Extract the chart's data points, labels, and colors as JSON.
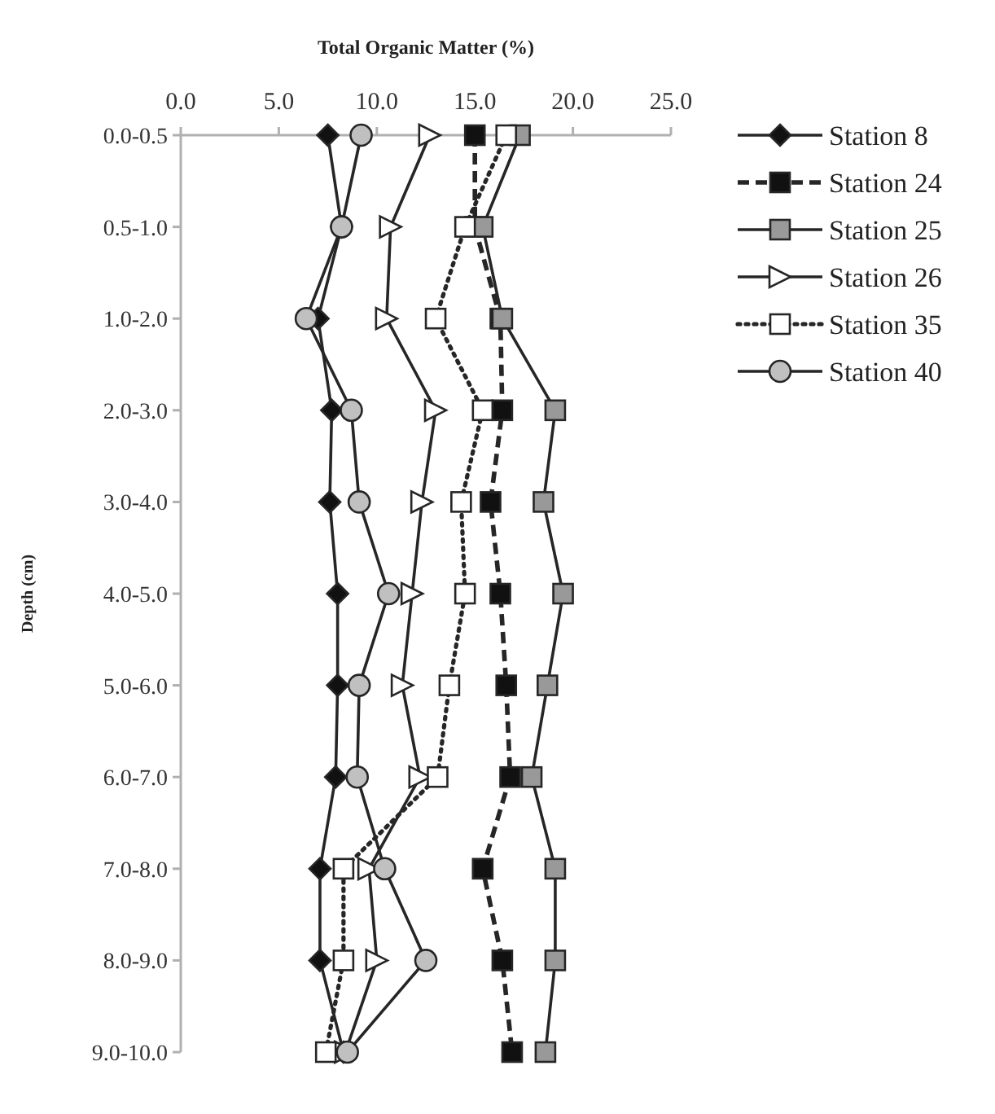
{
  "chart_data": {
    "type": "line",
    "orientation": "horizontal",
    "xlabel": "Total Organic Matter (%)",
    "ylabel": "Depth (cm)",
    "categories": [
      "0.0-0.5",
      "0.5-1.0",
      "1.0-2.0",
      "2.0-3.0",
      "3.0-4.0",
      "4.0-5.0",
      "5.0-6.0",
      "6.0-7.0",
      "7.0-8.0",
      "8.0-9.0",
      "9.0-10.0"
    ],
    "xlim": [
      0,
      25
    ],
    "xticks": [
      {
        "value": 0,
        "label": "0.0"
      },
      {
        "value": 5,
        "label": "5.0"
      },
      {
        "value": 10,
        "label": "10.0"
      },
      {
        "value": 15,
        "label": "15.0"
      },
      {
        "value": 20,
        "label": "20.0"
      },
      {
        "value": 25,
        "label": "25.0"
      }
    ],
    "grid": false,
    "legend": "right",
    "series": [
      {
        "name": "Station 8",
        "color": "#111111",
        "marker": "diamond",
        "line_style": "solid",
        "values": [
          7.5,
          8.2,
          7.0,
          7.7,
          7.6,
          8.0,
          8.0,
          7.9,
          7.1,
          7.1,
          8.3
        ]
      },
      {
        "name": "Station 24",
        "color": "#111111",
        "marker": "square",
        "line_style": "dashed",
        "values": [
          15.0,
          15.0,
          16.3,
          16.4,
          15.8,
          16.3,
          16.6,
          16.8,
          15.4,
          16.4,
          16.9
        ]
      },
      {
        "name": "Station 25",
        "color": "#999999",
        "marker": "square",
        "line_style": "solid",
        "values": [
          17.3,
          15.4,
          16.4,
          19.1,
          18.5,
          19.5,
          18.7,
          17.9,
          19.1,
          19.1,
          18.6
        ]
      },
      {
        "name": "Station 26",
        "color": "#ffffff",
        "marker": "triangle",
        "line_style": "solid",
        "values": [
          12.7,
          10.7,
          10.5,
          13.0,
          12.3,
          11.8,
          11.3,
          12.2,
          9.6,
          10.0,
          8.4
        ]
      },
      {
        "name": "Station 35",
        "color": "#ffffff",
        "marker": "square",
        "line_style": "dotted",
        "values": [
          16.6,
          14.5,
          13.0,
          15.4,
          14.3,
          14.5,
          13.7,
          13.1,
          8.3,
          8.3,
          7.4
        ]
      },
      {
        "name": "Station 40",
        "color": "#c0c0c0",
        "marker": "circle",
        "line_style": "solid",
        "values": [
          9.2,
          8.2,
          6.4,
          8.7,
          9.1,
          10.6,
          9.1,
          9.0,
          10.4,
          12.5,
          8.5
        ]
      }
    ]
  }
}
